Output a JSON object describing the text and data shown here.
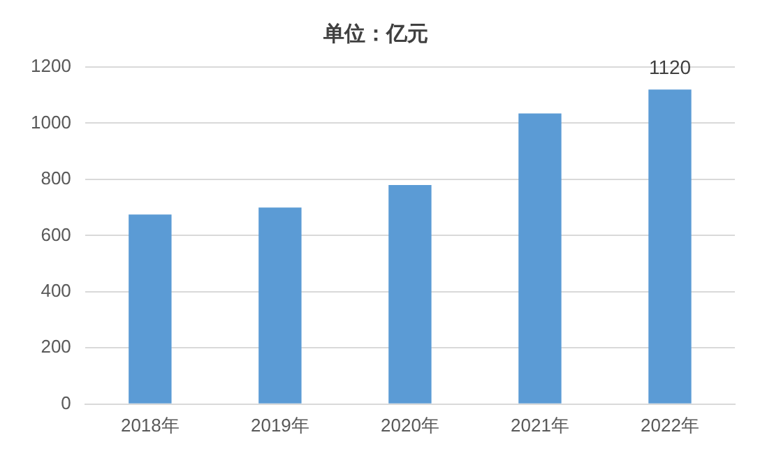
{
  "chart_data": {
    "type": "bar",
    "title": "单位：亿元",
    "categories": [
      "2018年",
      "2019年",
      "2020年",
      "2021年",
      "2022年"
    ],
    "values": [
      675,
      700,
      780,
      1035,
      1120
    ],
    "color": "#5b9bd5",
    "value_labels": [
      null,
      null,
      null,
      null,
      "1120"
    ],
    "ylim": [
      0,
      1200
    ],
    "yticks": [
      0,
      200,
      400,
      600,
      800,
      1000,
      1200
    ],
    "grid": "y"
  }
}
